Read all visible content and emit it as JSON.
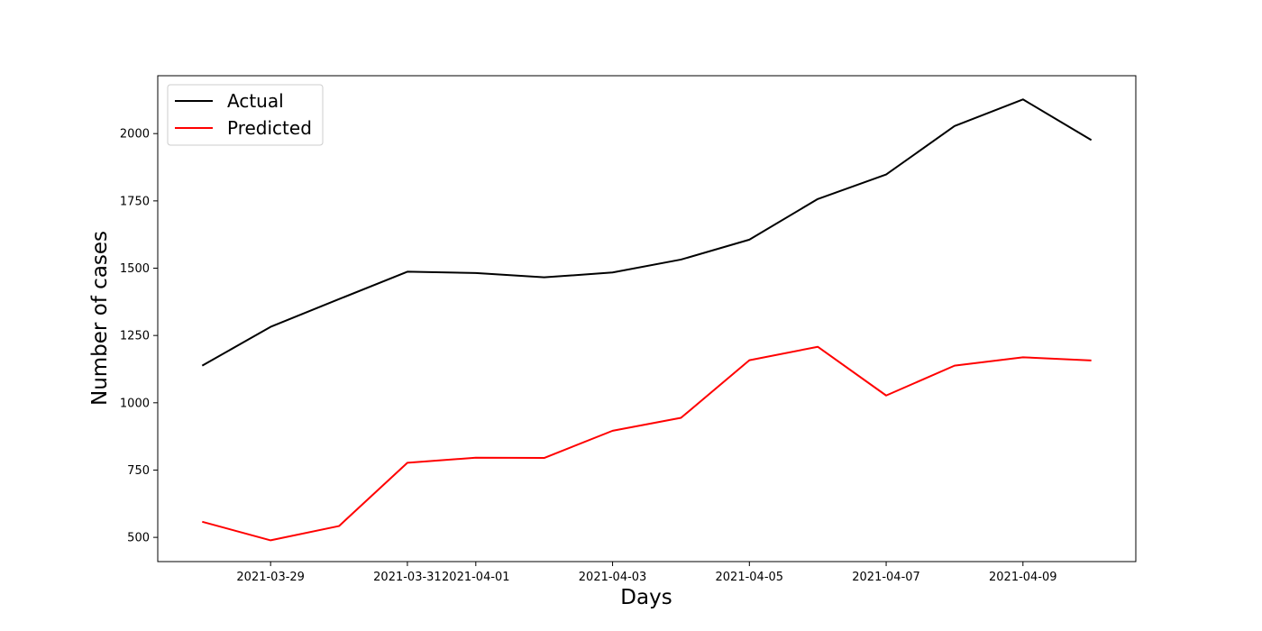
{
  "chart_data": {
    "type": "line",
    "title": "",
    "xlabel": "Days",
    "ylabel": "Number of cases",
    "x": [
      "2021-03-28",
      "2021-03-29",
      "2021-03-30",
      "2021-03-31",
      "2021-04-01",
      "2021-04-02",
      "2021-04-03",
      "2021-04-04",
      "2021-04-05",
      "2021-04-06",
      "2021-04-07",
      "2021-04-08",
      "2021-04-09",
      "2021-04-10"
    ],
    "x_ticks": [
      "2021-03-29",
      "2021-03-31",
      "2021-04-01",
      "2021-04-03",
      "2021-04-05",
      "2021-04-07",
      "2021-04-09"
    ],
    "xlim": [
      "2021-03-27T08:24:00",
      "2021-04-10T15:36:00"
    ],
    "y_ticks": [
      500,
      750,
      1000,
      1250,
      1500,
      1750,
      2000
    ],
    "ylim": [
      410,
      2215
    ],
    "grid": false,
    "legend_position": "upper left",
    "series": [
      {
        "name": "Actual",
        "color": "#000000",
        "values": [
          1138,
          1282,
          1385,
          1487,
          1482,
          1466,
          1484,
          1532,
          1606,
          1757,
          1848,
          2028,
          2127,
          1976
        ]
      },
      {
        "name": "Predicted",
        "color": "#ff0000",
        "values": [
          558,
          489,
          542,
          777,
          796,
          795,
          896,
          944,
          1158,
          1208,
          1027,
          1138,
          1169,
          1157
        ]
      }
    ]
  }
}
